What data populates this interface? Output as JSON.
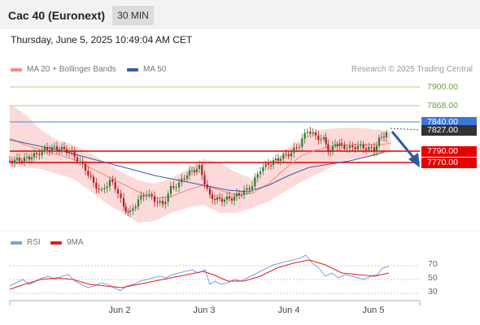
{
  "header": {
    "title": "Cac 40 (Euronext)",
    "timeframe": "30 MIN"
  },
  "datetime": "Thursday, June 5, 2025 10:49:04 AM CET",
  "legend": {
    "ma20_label": "MA 20 + Bollinger Bands",
    "ma50_label": "MA 50",
    "credit": "Research © 2025 Trading Central"
  },
  "rsi_legend": {
    "rsi_label": "RSI",
    "ma_label": "9MA"
  },
  "price_levels": {
    "r3": "7900.00",
    "r2": "7868.00",
    "r1": "7840.00",
    "current": "7827.00",
    "pivot": "7790.00",
    "s1": "7770.00"
  },
  "rsi_levels": [
    "70",
    "50",
    "30"
  ],
  "x_axis": [
    "Jun 2",
    "Jun 3",
    "Jun 4",
    "Jun 5"
  ],
  "colors": {
    "resistance": "#a8d08a",
    "pivot_line": "#6b98e6",
    "support": "#e60000",
    "current_tag": "#333333",
    "pivot_tag": "#3a78d8",
    "support_tag": "#e60000",
    "candle_up": "#2e7d32",
    "candle_down": "#b71c1c",
    "bollinger": "#fdd3d3",
    "ma20": "#f28b82",
    "ma50": "#3b5ba5",
    "rsi": "#7aa0e8",
    "rsi_ma": "#e02020",
    "arrow": "#2d5aa5"
  },
  "icons": {
    "forecast": "down-right-arrow"
  }
}
